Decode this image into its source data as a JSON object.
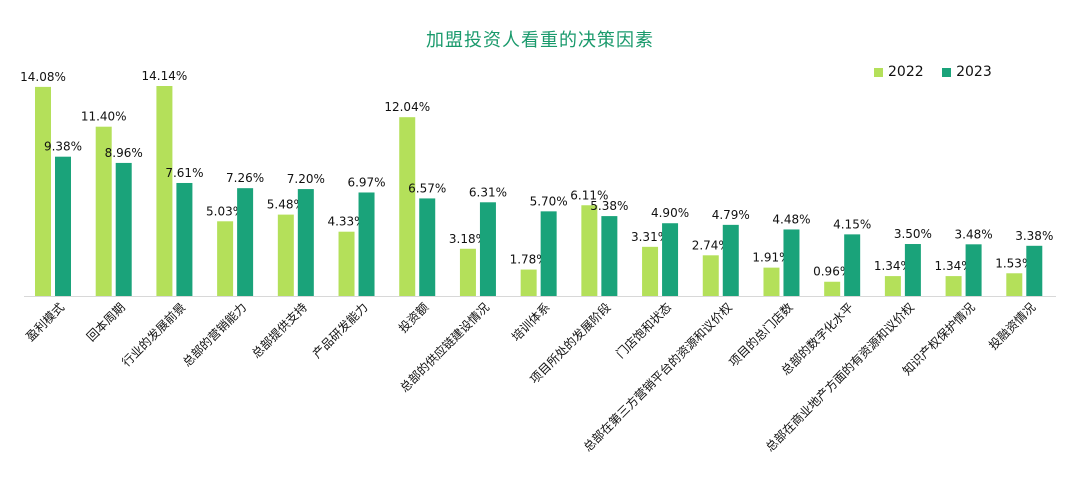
{
  "chart_data": {
    "type": "bar",
    "title": "加盟投资人看重的决策因素",
    "categories": [
      "盈利模式",
      "回本周期",
      "行业的发展前景",
      "总部的营销能力",
      "总部提供支持",
      "产品研发能力",
      "投资额",
      "总部的供应链建设情况",
      "培训体系",
      "项目所处的发展阶段",
      "门店饱和状态",
      "总部在第三方营销平台的资源和议价权",
      "项目的总门店数",
      "总部的数字化水平",
      "总部在商业地产方面的有资源和议价权",
      "知识产权保护情况",
      "投融资情况"
    ],
    "series": [
      {
        "name": "2022",
        "color": "#b4e05a",
        "values": [
          14.08,
          11.4,
          14.14,
          5.03,
          5.48,
          4.33,
          12.04,
          3.18,
          1.78,
          6.11,
          3.31,
          2.74,
          1.91,
          0.96,
          1.34,
          1.34,
          1.53
        ],
        "labels": [
          "14.08%",
          "11.40%",
          "14.14%",
          "5.03%",
          "5.48%",
          "4.33%",
          "12.04%",
          "3.18%",
          "1.78%",
          "6.11%",
          "3.31%",
          "2.74%",
          "1.91%",
          "0.96%",
          "1.34%",
          "1.34%",
          "1.53%"
        ]
      },
      {
        "name": "2023",
        "color": "#1aa37a",
        "values": [
          9.38,
          8.96,
          7.61,
          7.26,
          7.2,
          6.97,
          6.57,
          6.31,
          5.7,
          5.38,
          4.9,
          4.79,
          4.48,
          4.15,
          3.5,
          3.48,
          3.38
        ],
        "labels": [
          "9.38%",
          "8.96%",
          "7.61%",
          "7.26%",
          "7.20%",
          "6.97%",
          "6.57%",
          "6.31%",
          "5.70%",
          "5.38%",
          "4.90%",
          "4.79%",
          "4.48%",
          "4.15%",
          "3.50%",
          "3.48%",
          "3.38%"
        ]
      }
    ],
    "ylim": [
      0,
      14.14
    ],
    "grid": false,
    "legend_position": "top-right"
  }
}
